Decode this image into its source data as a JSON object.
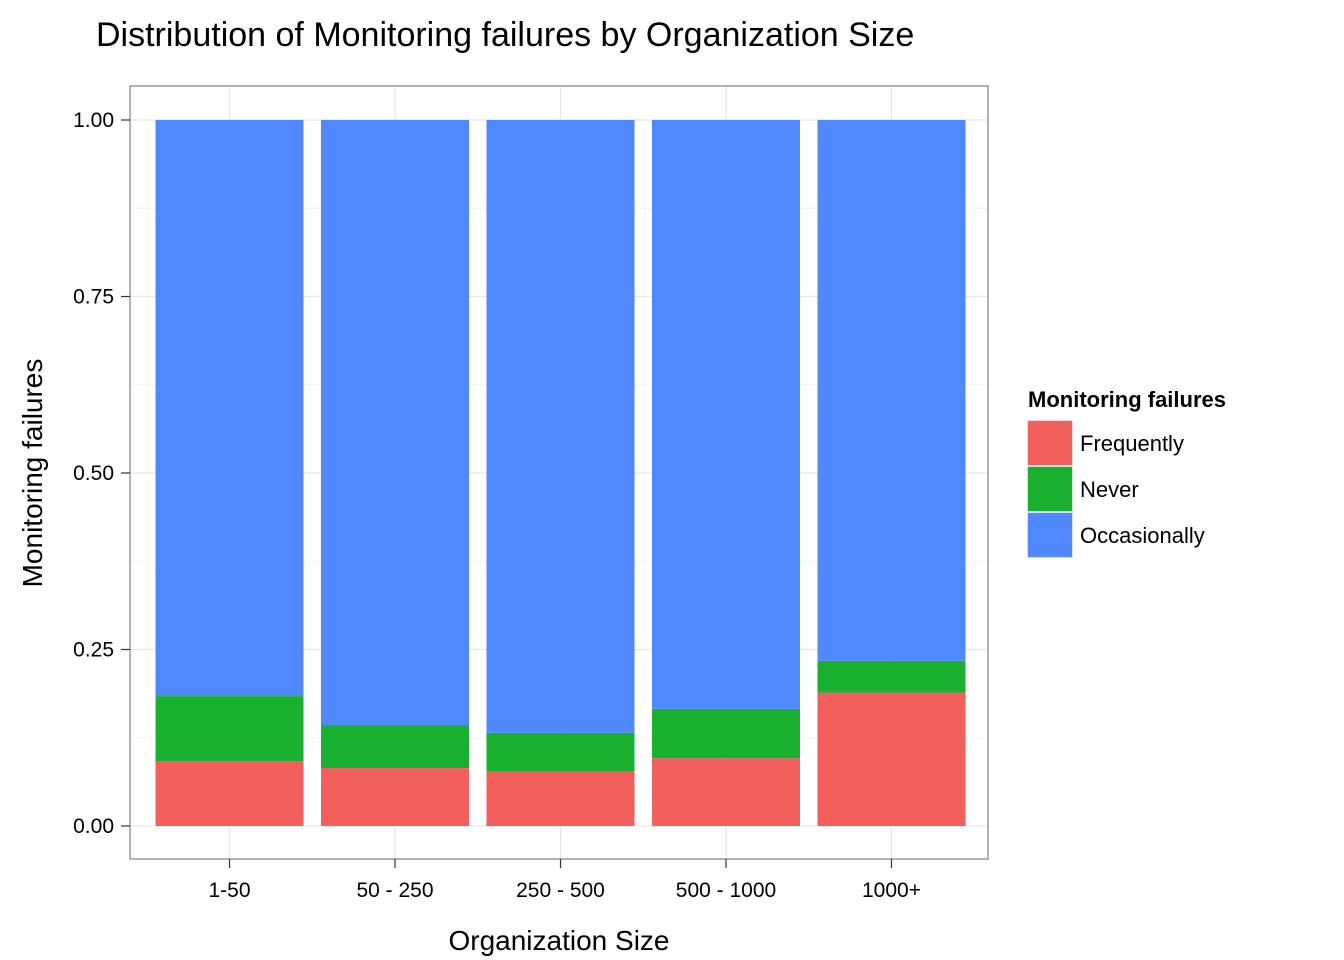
{
  "chart_data": {
    "type": "bar",
    "stacked": true,
    "title": "Distribution of Monitoring failures by Organization Size",
    "xlabel": "Organization Size",
    "ylabel": "Monitoring failures",
    "categories": [
      "1-50",
      "50 - 250",
      "250 - 500",
      "500 - 1000",
      "1000+"
    ],
    "y_ticks": [
      "0.00",
      "0.25",
      "0.50",
      "0.75",
      "1.00"
    ],
    "ylim": [
      0,
      1
    ],
    "grid": true,
    "legend": {
      "title": "Monitoring failures",
      "position": "right"
    },
    "series": [
      {
        "name": "Frequently",
        "color": "#F25F5C",
        "values": [
          0.092,
          0.082,
          0.077,
          0.096,
          0.189
        ]
      },
      {
        "name": "Never",
        "color": "#1AB02F",
        "values": [
          0.092,
          0.061,
          0.055,
          0.07,
          0.045
        ]
      },
      {
        "name": "Occasionally",
        "color": "#4F88FF",
        "values": [
          0.816,
          0.857,
          0.868,
          0.834,
          0.766
        ]
      }
    ]
  }
}
